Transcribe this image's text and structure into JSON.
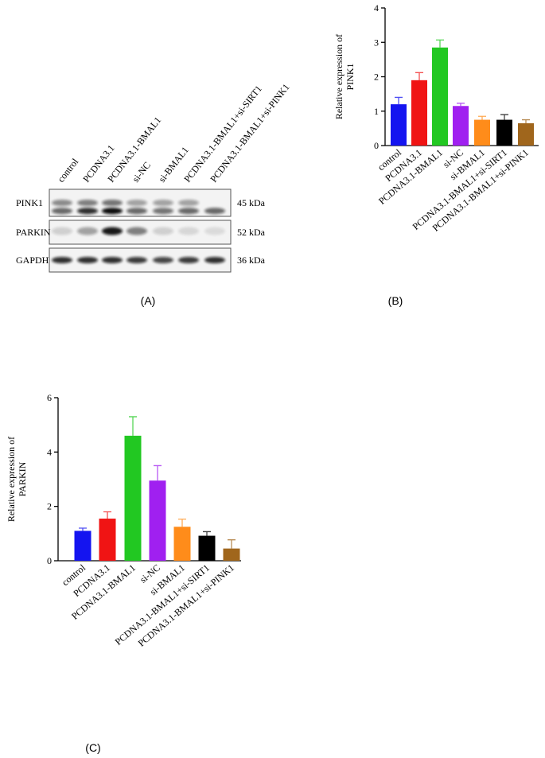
{
  "panel_labels": [
    "(A)",
    "(B)",
    "(C)"
  ],
  "blot": {
    "lanes": [
      "control",
      "PCDNA3.1",
      "PCDNA3.1-BMAL1",
      "si-NC",
      "si-BMAL1",
      "PCDNA3.1-BMAL1+si-SIRT1",
      "PCDNA3.1-BMAL1+si-PINK1"
    ],
    "rows": [
      {
        "protein": "PINK1",
        "size": "45 kDa"
      },
      {
        "protein": "PARKIN",
        "size": "52 kDa"
      },
      {
        "protein": "GAPDH",
        "size": "36 kDa"
      }
    ]
  },
  "chart_data": [
    {
      "type": "bar",
      "ylabel": [
        "Relative expression of",
        "PINK1"
      ],
      "categories": [
        "control",
        "PCDNA3.1",
        "PCDNA3.1-BMAL1",
        "si-NC",
        "si-BMAL1",
        "PCDNA3.1-BMAL1+si-SIRT1",
        "PCDNA3.1-BMAL1+si-PINK1"
      ],
      "values": [
        1.2,
        1.9,
        2.85,
        1.15,
        0.75,
        0.75,
        0.65
      ],
      "errors": [
        0.2,
        0.22,
        0.22,
        0.08,
        0.1,
        0.15,
        0.1
      ],
      "colors": [
        "#1414f0",
        "#f01414",
        "#22c822",
        "#a020f0",
        "#ff8c1a",
        "#000000",
        "#a0661c"
      ],
      "ylim": [
        0,
        4
      ],
      "yticks": [
        0,
        1,
        2,
        3,
        4
      ]
    },
    {
      "type": "bar",
      "ylabel": [
        "Relative expression of",
        "PARKIN"
      ],
      "categories": [
        "control",
        "PCDNA3.1",
        "PCDNA3.1-BMAL1",
        "si-NC",
        "si-BMAL1",
        "PCDNA3.1-BMAL1+si-SIRT1",
        "PCDNA3.1-BMAL1+si-PINK1"
      ],
      "values": [
        1.1,
        1.55,
        4.6,
        2.95,
        1.25,
        0.92,
        0.45
      ],
      "errors": [
        0.1,
        0.25,
        0.7,
        0.55,
        0.28,
        0.15,
        0.32
      ],
      "colors": [
        "#1414f0",
        "#f01414",
        "#22c822",
        "#a020f0",
        "#ff8c1a",
        "#000000",
        "#a0661c"
      ],
      "ylim": [
        0,
        6
      ],
      "yticks": [
        0,
        2,
        4,
        6
      ]
    }
  ]
}
